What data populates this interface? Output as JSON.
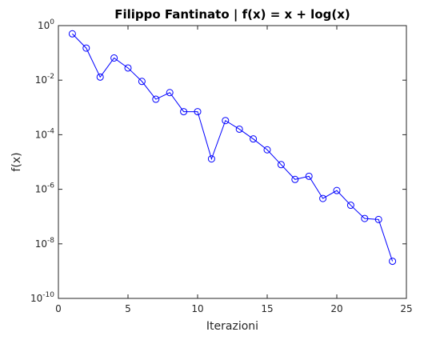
{
  "chart_data": {
    "type": "line",
    "title": "Filippo Fantinato | f(x) = x + log(x)",
    "xlabel": "Iterazioni",
    "ylabel": "f(x)",
    "xlim": [
      0,
      25
    ],
    "ylim": [
      1e-10,
      1
    ],
    "yscale": "log",
    "x_ticks": [
      0,
      5,
      10,
      15,
      20,
      25
    ],
    "y_ticks": [
      {
        "base": "10",
        "exp": "0",
        "value": 1
      },
      {
        "base": "10",
        "exp": "-2",
        "value": 0.01
      },
      {
        "base": "10",
        "exp": "-4",
        "value": 0.0001
      },
      {
        "base": "10",
        "exp": "-6",
        "value": 1e-06
      },
      {
        "base": "10",
        "exp": "-8",
        "value": 1e-08
      },
      {
        "base": "10",
        "exp": "-10",
        "value": 1e-10
      }
    ],
    "grid": false,
    "series": [
      {
        "marker": "circle",
        "color": "#0000ff",
        "x": [
          1,
          2,
          3,
          4,
          5,
          6,
          7,
          8,
          9,
          10,
          11,
          12,
          13,
          14,
          15,
          16,
          17,
          18,
          19,
          20,
          21,
          22,
          23,
          24
        ],
        "y": [
          0.5,
          0.15,
          0.013,
          0.065,
          0.028,
          0.009,
          0.002,
          0.0035,
          0.0007,
          0.0007,
          1.3e-05,
          0.00033,
          0.00016,
          7e-05,
          2.8e-05,
          8e-06,
          2.3e-06,
          3e-06,
          4.6e-07,
          9e-07,
          2.6e-07,
          8.5e-08,
          7.8e-08,
          2.3e-09
        ]
      }
    ]
  }
}
